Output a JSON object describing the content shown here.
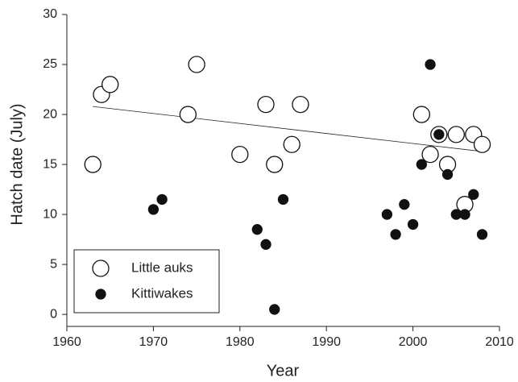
{
  "chart_data": {
    "type": "scatter",
    "x_label": "Year",
    "y_label": "Hatch date (July)",
    "xlim": [
      1960,
      2010
    ],
    "ylim": [
      -1.2,
      30
    ],
    "xticks": [
      1960,
      1970,
      1980,
      1990,
      2000,
      2010
    ],
    "yticks": [
      0,
      5,
      10,
      15,
      20,
      25,
      30
    ],
    "legend": "lower left",
    "series": [
      {
        "name": "Little auks",
        "color": "#ffffff",
        "x": [
          1963,
          1964,
          1965,
          1974,
          1975,
          1980,
          1983,
          1984,
          1986,
          1987,
          2001,
          2002,
          2003,
          2004,
          2005,
          2006,
          2007,
          2008
        ],
        "values": [
          15,
          22,
          23,
          20,
          25,
          16,
          21,
          15,
          17,
          21,
          20,
          16,
          18,
          15,
          18,
          11,
          18,
          17
        ]
      },
      {
        "name": "Kittiwakes",
        "color": "#111111",
        "x": [
          1970,
          1971,
          1982,
          1983,
          1984,
          1985,
          1997,
          1998,
          1999,
          2000,
          2001,
          2002,
          2003,
          2004,
          2005,
          2006,
          2007,
          2008
        ],
        "values": [
          10.5,
          11.5,
          8.5,
          7,
          0.5,
          11.5,
          10,
          8,
          11,
          9,
          15,
          25,
          18,
          14,
          10,
          10,
          12,
          8
        ]
      }
    ],
    "trend_line": {
      "x": [
        1963,
        2008
      ],
      "values": [
        20.8,
        16.3
      ]
    }
  }
}
